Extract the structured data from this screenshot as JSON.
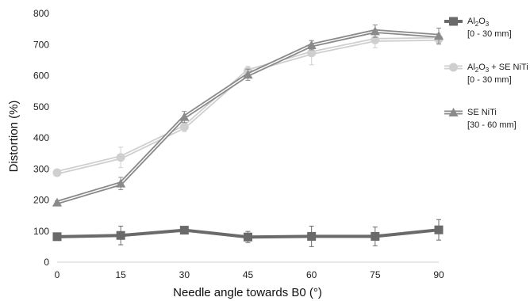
{
  "chart_data": {
    "type": "line",
    "xlabel": "Needle angle towards B0 (°)",
    "ylabel": "Distortion (%)",
    "x": [
      0,
      15,
      30,
      45,
      60,
      75,
      90
    ],
    "xlim": [
      0,
      90
    ],
    "ylim": [
      0,
      800
    ],
    "y_ticks": [
      0,
      100,
      200,
      300,
      400,
      500,
      600,
      700,
      800
    ],
    "x_ticks": [
      0,
      15,
      30,
      45,
      60,
      75,
      90
    ],
    "grid": false,
    "legend_position": "right",
    "series": [
      {
        "name_main": "Al",
        "name_sub1": "2",
        "name_mid": "O",
        "name_sub2": "3",
        "name_tail": "",
        "range": "[0 - 30 mm]",
        "marker": "square",
        "color": "#6a6a6a",
        "values": [
          82,
          86,
          103,
          81,
          83,
          83,
          104
        ],
        "errors": [
          8,
          30,
          8,
          18,
          33,
          30,
          33
        ]
      },
      {
        "name_main": "Al",
        "name_sub1": "2",
        "name_mid": "O",
        "name_sub2": "3",
        "name_tail": " + SE NiTi",
        "range": "[0 - 30 mm]",
        "marker": "circle",
        "color": "#cfcfcf",
        "values": [
          288,
          337,
          435,
          615,
          673,
          715,
          718
        ],
        "errors": [
          6,
          33,
          15,
          15,
          38,
          25,
          18
        ]
      },
      {
        "name_main": "SE NiTi",
        "name_sub1": "",
        "name_mid": "",
        "name_sub2": "",
        "name_tail": "",
        "range": "[30 - 60 mm]",
        "marker": "triangle",
        "color": "#8a8a8a",
        "values": [
          192,
          253,
          467,
          603,
          698,
          743,
          728
        ],
        "errors": [
          5,
          20,
          18,
          18,
          15,
          20,
          25
        ]
      }
    ]
  }
}
